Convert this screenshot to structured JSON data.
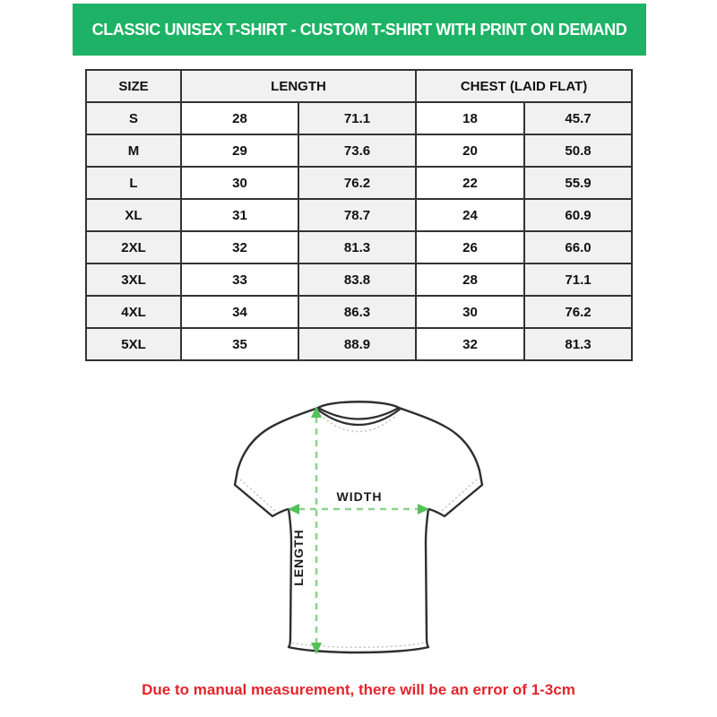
{
  "banner": {
    "title": "CLASSIC UNISEX T-SHIRT - CUSTOM T-SHIRT WITH PRINT ON DEMAND"
  },
  "size_table": {
    "columns": [
      "SIZE",
      "LENGTH",
      "CHEST (LAID FLAT)"
    ],
    "rows": [
      {
        "size": "S",
        "length_in": "28",
        "length_cm": "71.1",
        "chest_in": "18",
        "chest_cm": "45.7"
      },
      {
        "size": "M",
        "length_in": "29",
        "length_cm": "73.6",
        "chest_in": "20",
        "chest_cm": "50.8"
      },
      {
        "size": "L",
        "length_in": "30",
        "length_cm": "76.2",
        "chest_in": "22",
        "chest_cm": "55.9"
      },
      {
        "size": "XL",
        "length_in": "31",
        "length_cm": "78.7",
        "chest_in": "24",
        "chest_cm": "60.9"
      },
      {
        "size": "2XL",
        "length_in": "32",
        "length_cm": "81.3",
        "chest_in": "26",
        "chest_cm": "66.0"
      },
      {
        "size": "3XL",
        "length_in": "33",
        "length_cm": "83.8",
        "chest_in": "28",
        "chest_cm": "71.1"
      },
      {
        "size": "4XL",
        "length_in": "34",
        "length_cm": "86.3",
        "chest_in": "30",
        "chest_cm": "76.2"
      },
      {
        "size": "5XL",
        "length_in": "35",
        "length_cm": "88.9",
        "chest_in": "32",
        "chest_cm": "81.3"
      }
    ]
  },
  "diagram": {
    "width_label": "WIDTH",
    "length_label": "LENGTH"
  },
  "note": {
    "text": "Due to manual measurement, there will be an error of 1-3cm"
  },
  "colors": {
    "banner_green": "#1db265",
    "note_red": "#e2252b",
    "cell_gray": "#f1f1f1",
    "border_dark": "#333333",
    "arrow_dash_green": "#8ed28e",
    "arrow_head_green": "#54c158"
  }
}
